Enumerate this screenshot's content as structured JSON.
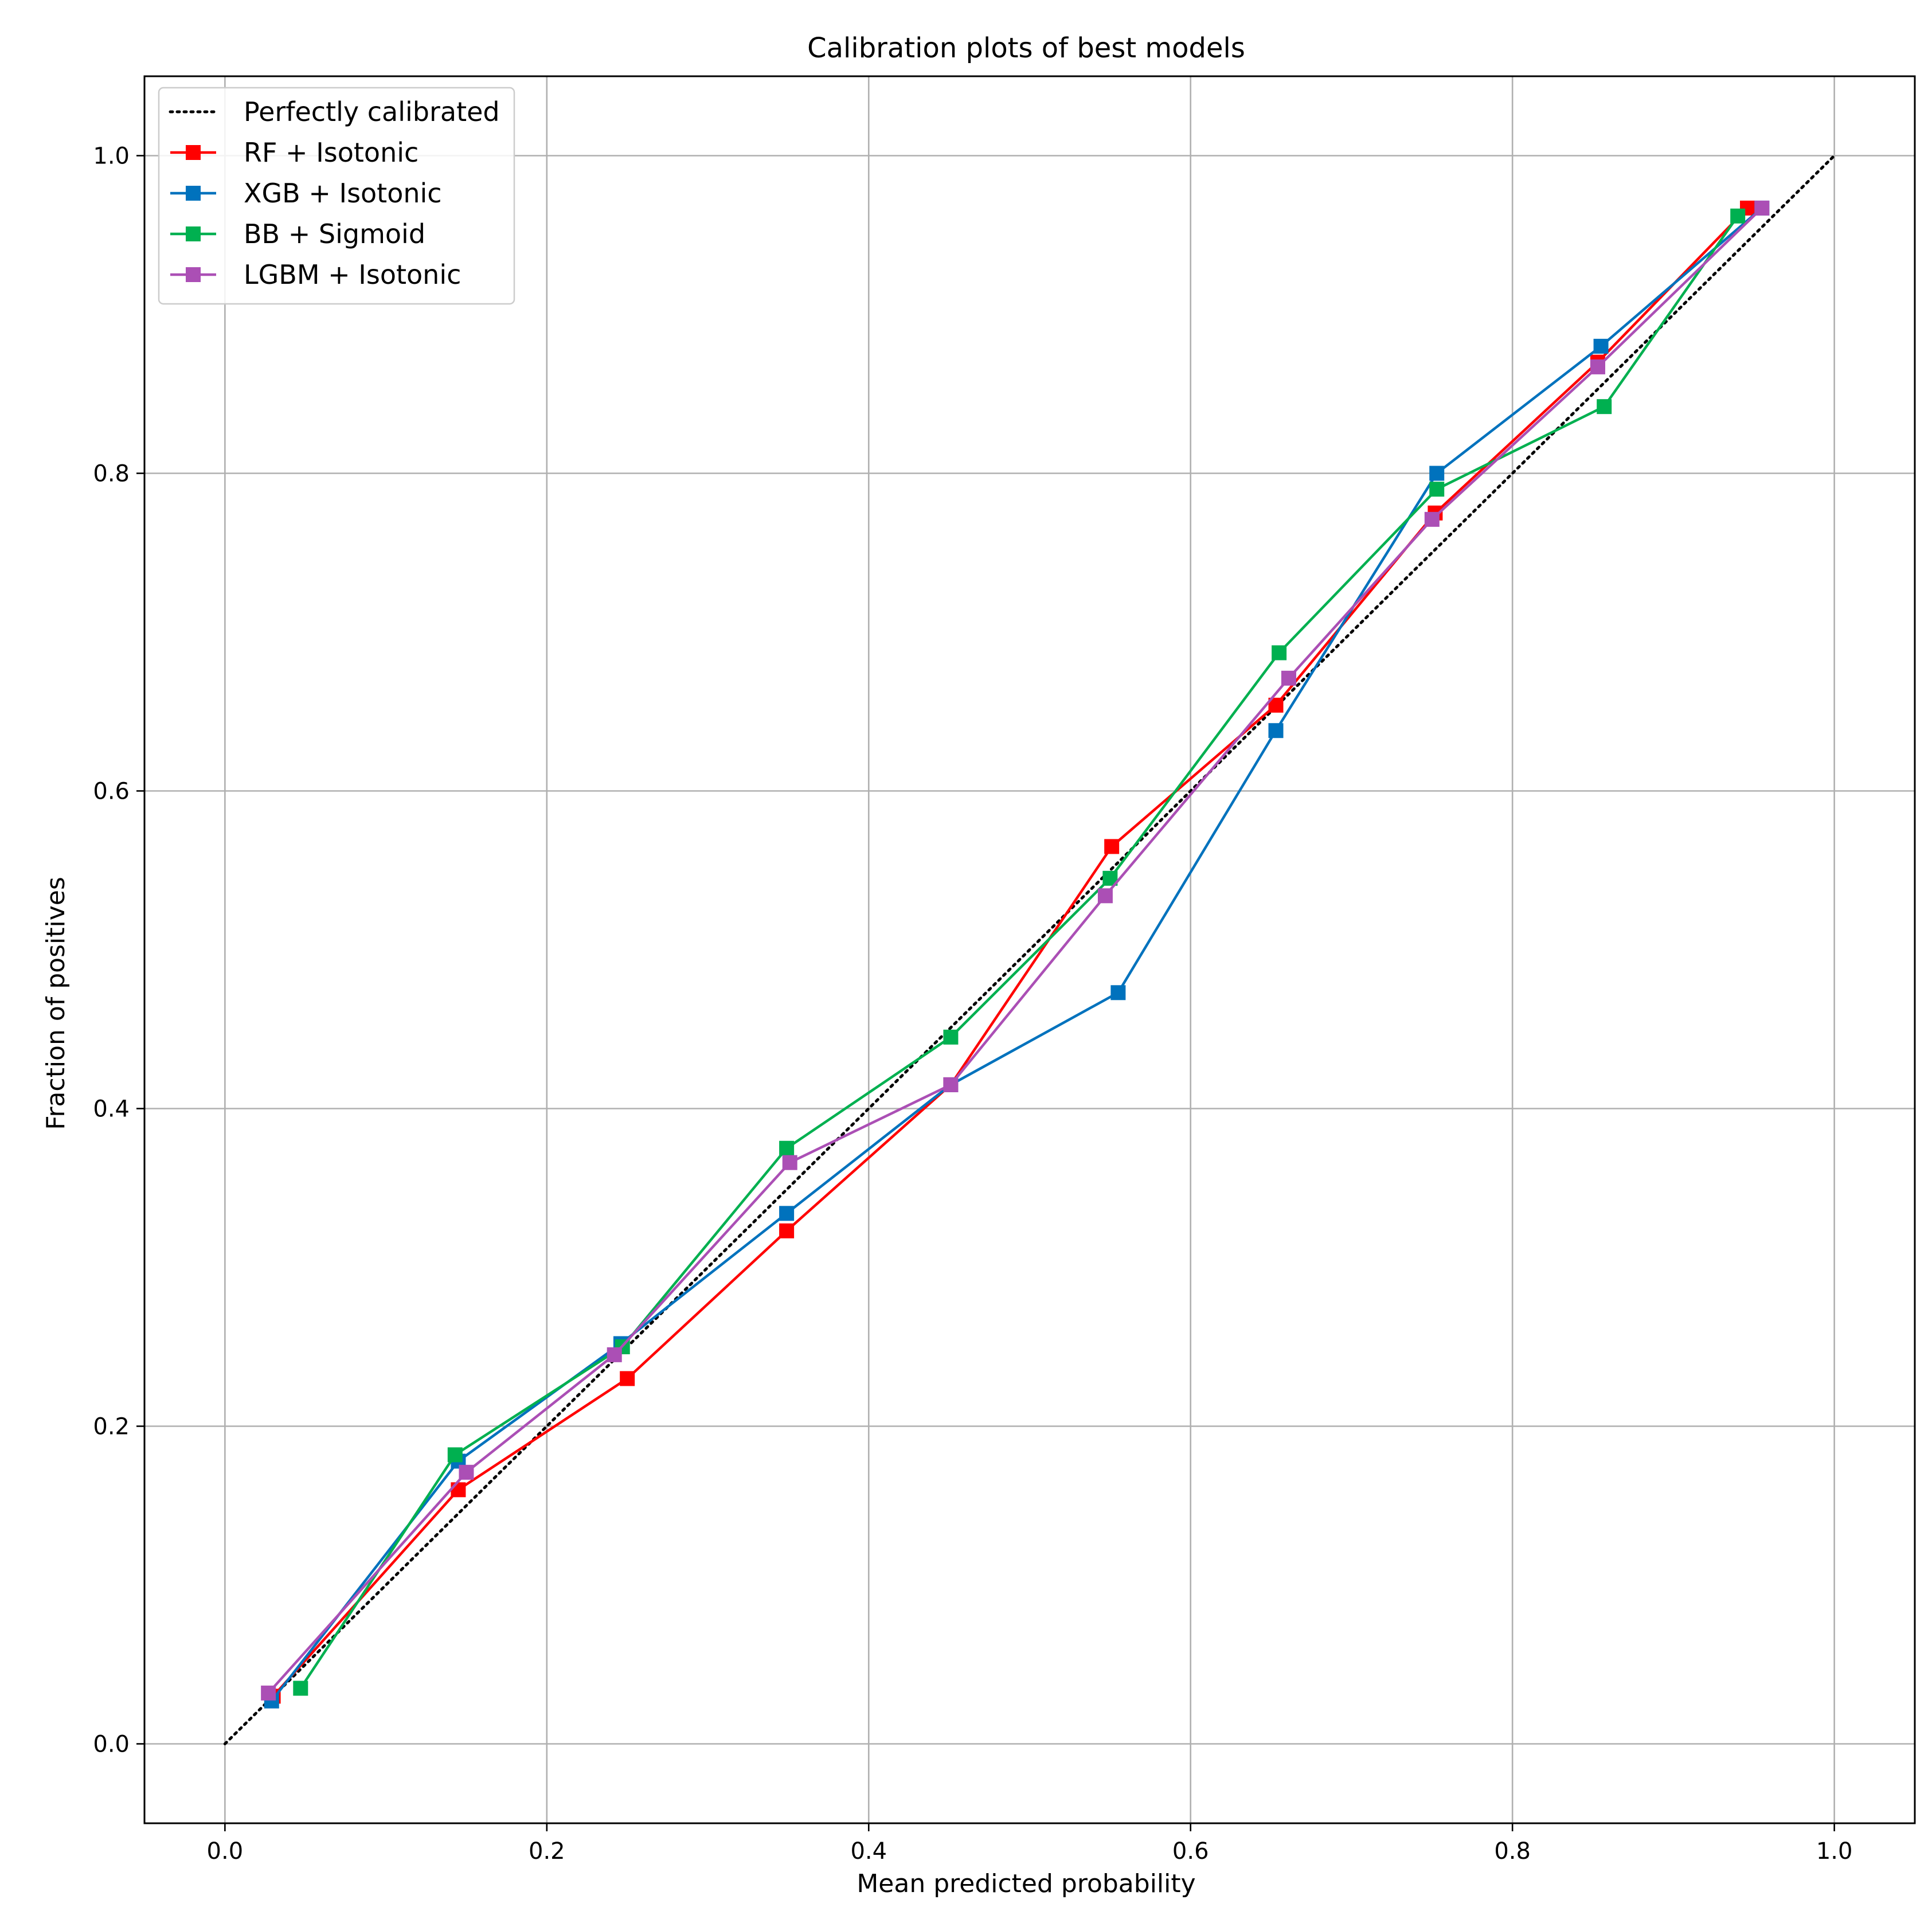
{
  "chart_data": {
    "type": "line",
    "title": "Calibration plots of best models",
    "xlabel": "Mean predicted probability",
    "ylabel": "Fraction of positives",
    "xlim": [
      -0.05,
      1.05
    ],
    "ylim": [
      -0.05,
      1.05
    ],
    "xticks": [
      "0.0",
      "0.2",
      "0.4",
      "0.6",
      "0.8",
      "1.0"
    ],
    "yticks": [
      "0.0",
      "0.2",
      "0.4",
      "0.6",
      "0.8",
      "1.0"
    ],
    "grid": true,
    "legend_position": "top-left",
    "reference": {
      "name": "Perfectly calibrated",
      "x": [
        0.0,
        1.0
      ],
      "y": [
        0.0,
        1.0
      ],
      "color": "#000000",
      "style": "dotted"
    },
    "series": [
      {
        "name": "RF + Isotonic",
        "color": "#ff0000",
        "marker": "square",
        "x": [
          0.03,
          0.145,
          0.25,
          0.349,
          0.451,
          0.551,
          0.653,
          0.752,
          0.853,
          0.946
        ],
        "y": [
          0.03,
          0.16,
          0.23,
          0.323,
          0.415,
          0.565,
          0.654,
          0.775,
          0.87,
          0.967
        ]
      },
      {
        "name": "XGB + Isotonic",
        "color": "#0072bd",
        "marker": "square",
        "x": [
          0.029,
          0.145,
          0.246,
          0.349,
          0.451,
          0.555,
          0.653,
          0.753,
          0.855,
          0.955
        ],
        "y": [
          0.027,
          0.178,
          0.252,
          0.334,
          0.415,
          0.473,
          0.638,
          0.8,
          0.88,
          0.967
        ]
      },
      {
        "name": "BB + Sigmoid",
        "color": "#00b050",
        "marker": "square",
        "x": [
          0.047,
          0.143,
          0.247,
          0.349,
          0.451,
          0.55,
          0.655,
          0.753,
          0.857,
          0.94
        ],
        "y": [
          0.035,
          0.182,
          0.25,
          0.375,
          0.445,
          0.545,
          0.687,
          0.79,
          0.842,
          0.962
        ]
      },
      {
        "name": "LGBM + Isotonic",
        "color": "#ab4fb5",
        "marker": "square",
        "x": [
          0.027,
          0.15,
          0.242,
          0.351,
          0.451,
          0.547,
          0.661,
          0.75,
          0.853,
          0.955
        ],
        "y": [
          0.032,
          0.171,
          0.245,
          0.366,
          0.415,
          0.534,
          0.671,
          0.771,
          0.867,
          0.967
        ]
      }
    ]
  }
}
